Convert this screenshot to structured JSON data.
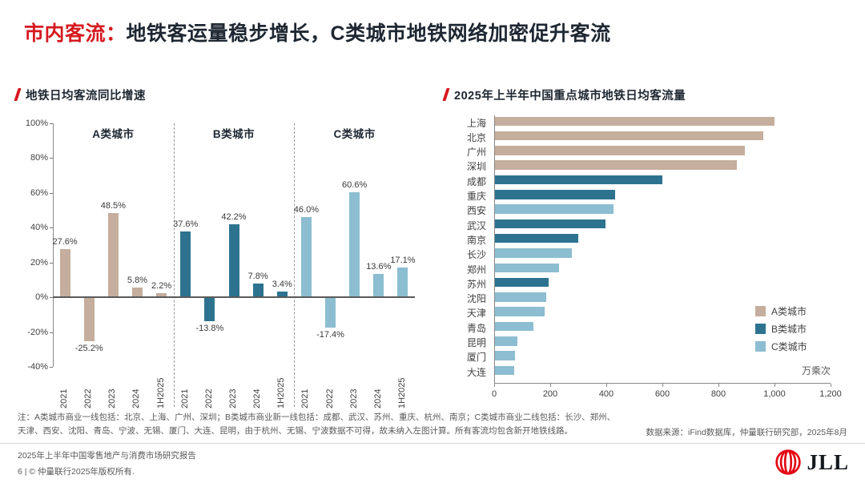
{
  "slide": {
    "title_red": "市内客流：",
    "title_rest": "地铁客运量稳步增长，C类城市地铁网络加密促升客流",
    "note_line1": "注：A类城市商业一线包括：北京、上海、广州、深圳；B类城市商业新一线包括：成都、武汉、苏州、重庆、杭州、南京；C类城市商业二线包括：长沙、郑州、",
    "note_line2": "天津、西安、沈阳、青岛、宁波、无锡、厦门、大连、昆明，由于杭州、无锡、宁波数据不可得，故未纳入左图计算。所有客流均包含新开地铁线路。",
    "source": "数据来源：iFind数据库，仲量联行研究部，2025年8月",
    "footer_line1": "2025年上半年中国零售地产与消费市场研究报告",
    "footer_line2": "6 | © 仲量联行2025年版权所有.",
    "logo_text": "JLL"
  },
  "colors": {
    "accent_red": "#d71920",
    "logo_red": "#e30613",
    "category_A": "#c5ae9d",
    "category_B": "#2d7390",
    "category_C": "#8cbdd1",
    "text_dark": "#1e2732",
    "text_gray": "#595959"
  },
  "chart_data": [
    {
      "type": "bar",
      "orientation": "vertical-grouped",
      "title": "地铁日均客流同比增速",
      "categories": [
        "2021",
        "2022",
        "2023",
        "2024",
        "1H2025"
      ],
      "ylim": [
        -40,
        100
      ],
      "ytick_step": 20,
      "ytick_labels": [
        "100%",
        "80%",
        "60%",
        "40%",
        "20%",
        "0%",
        "-20%",
        "-40%"
      ],
      "value_suffix": "%",
      "grid": false,
      "series": [
        {
          "name": "A类城市",
          "color": "#c5ae9d",
          "values": [
            27.6,
            -25.2,
            48.5,
            5.8,
            2.2
          ]
        },
        {
          "name": "B类城市",
          "color": "#2d7390",
          "values": [
            37.6,
            -13.8,
            42.2,
            7.8,
            3.4
          ]
        },
        {
          "name": "C类城市",
          "color": "#8cbdd1",
          "values": [
            46.0,
            -17.4,
            60.6,
            13.6,
            17.1
          ]
        }
      ]
    },
    {
      "type": "bar",
      "orientation": "horizontal",
      "title": "2025年上半年中国重点城市地铁日均客流量",
      "unit": "万乘次",
      "xlim": [
        0,
        1200
      ],
      "xticks": [
        0,
        200,
        400,
        600,
        800,
        1000,
        1200
      ],
      "xtick_labels": [
        "0",
        "200",
        "400",
        "600",
        "800",
        "1,000",
        "1,200"
      ],
      "grid": false,
      "legend_position": "right-middle",
      "legend": [
        {
          "label": "A类城市",
          "color": "#c5ae9d"
        },
        {
          "label": "B类城市",
          "color": "#2d7390"
        },
        {
          "label": "C类城市",
          "color": "#8cbdd1"
        }
      ],
      "rows": [
        {
          "name": "上海",
          "value": 1000,
          "category": "A"
        },
        {
          "name": "北京",
          "value": 960,
          "category": "A"
        },
        {
          "name": "广州",
          "value": 895,
          "category": "A"
        },
        {
          "name": "深圳",
          "value": 865,
          "category": "A"
        },
        {
          "name": "成都",
          "value": 600,
          "category": "B"
        },
        {
          "name": "重庆",
          "value": 430,
          "category": "B"
        },
        {
          "name": "西安",
          "value": 425,
          "category": "C"
        },
        {
          "name": "武汉",
          "value": 398,
          "category": "B"
        },
        {
          "name": "南京",
          "value": 300,
          "category": "B"
        },
        {
          "name": "长沙",
          "value": 278,
          "category": "C"
        },
        {
          "name": "郑州",
          "value": 230,
          "category": "C"
        },
        {
          "name": "苏州",
          "value": 195,
          "category": "B"
        },
        {
          "name": "沈阳",
          "value": 185,
          "category": "C"
        },
        {
          "name": "天津",
          "value": 180,
          "category": "C"
        },
        {
          "name": "青岛",
          "value": 140,
          "category": "C"
        },
        {
          "name": "昆明",
          "value": 82,
          "category": "C"
        },
        {
          "name": "厦门",
          "value": 74,
          "category": "C"
        },
        {
          "name": "大连",
          "value": 70,
          "category": "C"
        }
      ]
    }
  ]
}
